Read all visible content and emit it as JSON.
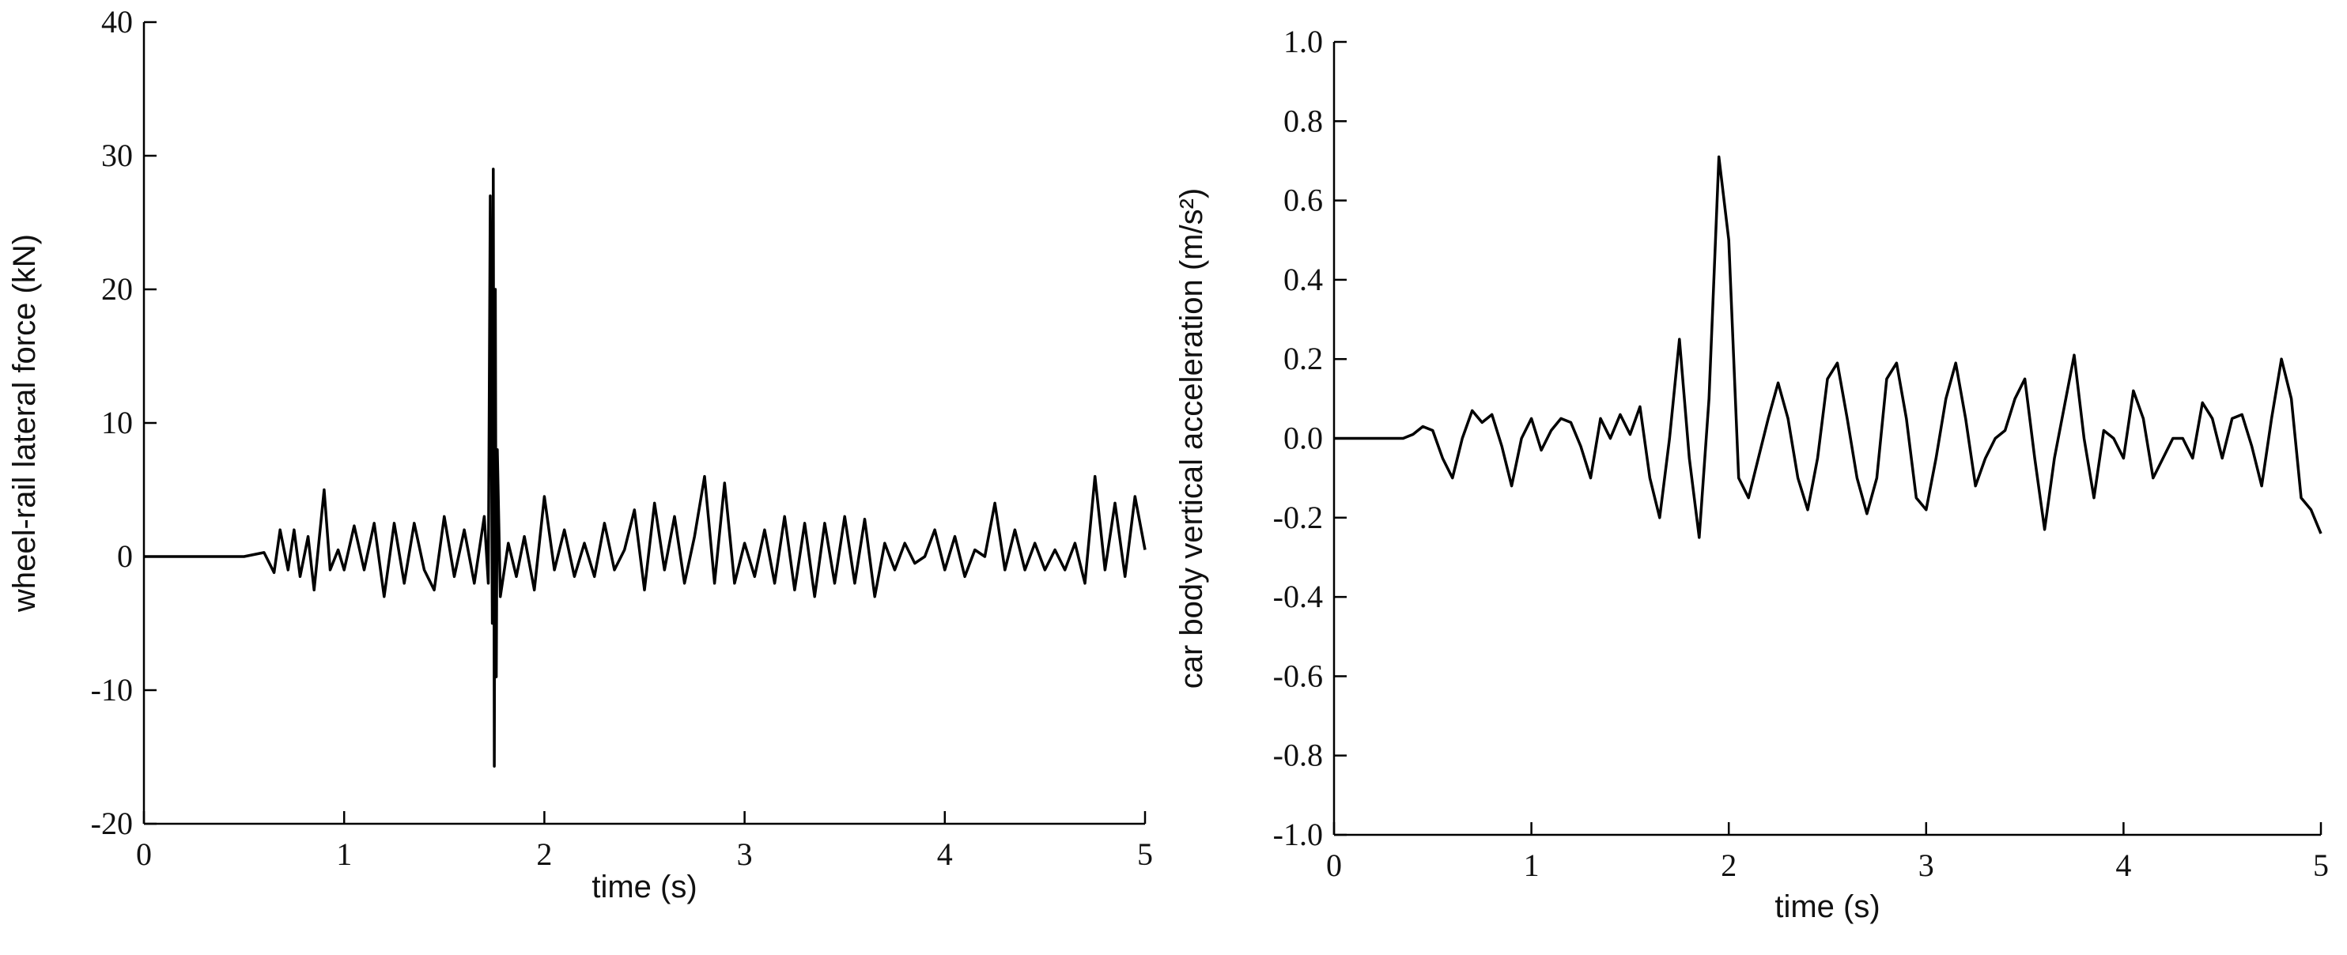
{
  "chart_data": [
    {
      "type": "line",
      "ylabel": "wheel-rail lateral force  (kN)",
      "xlabel": "time   (s)",
      "color": "#000000",
      "xlim": [
        0,
        5
      ],
      "xticks": [
        0,
        1,
        2,
        3,
        4,
        5
      ],
      "ylim": [
        -20,
        40
      ],
      "yticks": [
        -20,
        -10,
        0,
        10,
        20,
        30,
        40
      ],
      "x": [
        0,
        0.4,
        0.5,
        0.6,
        0.65,
        0.68,
        0.72,
        0.75,
        0.78,
        0.82,
        0.85,
        0.9,
        0.93,
        0.97,
        1.0,
        1.05,
        1.1,
        1.15,
        1.2,
        1.25,
        1.3,
        1.35,
        1.4,
        1.45,
        1.5,
        1.55,
        1.6,
        1.65,
        1.7,
        1.72,
        1.73,
        1.74,
        1.745,
        1.75,
        1.755,
        1.76,
        1.765,
        1.78,
        1.82,
        1.86,
        1.9,
        1.95,
        2.0,
        2.05,
        2.1,
        2.15,
        2.2,
        2.25,
        2.3,
        2.35,
        2.4,
        2.45,
        2.5,
        2.55,
        2.6,
        2.65,
        2.7,
        2.75,
        2.8,
        2.85,
        2.9,
        2.95,
        3.0,
        3.05,
        3.1,
        3.15,
        3.2,
        3.25,
        3.3,
        3.35,
        3.4,
        3.45,
        3.5,
        3.55,
        3.6,
        3.65,
        3.7,
        3.75,
        3.8,
        3.85,
        3.9,
        3.95,
        4.0,
        4.05,
        4.1,
        4.15,
        4.2,
        4.25,
        4.3,
        4.35,
        4.4,
        4.45,
        4.5,
        4.55,
        4.6,
        4.65,
        4.7,
        4.75,
        4.8,
        4.85,
        4.9,
        4.95,
        5.0
      ],
      "values": [
        0,
        0,
        0,
        0.3,
        -1.2,
        2,
        -1,
        2,
        -1.5,
        1.5,
        -2.5,
        5,
        -1,
        0.5,
        -1,
        2.3,
        -1,
        2.5,
        -3,
        2.5,
        -2,
        2.5,
        -1,
        -2.5,
        3,
        -1.5,
        2,
        -2,
        3,
        -2,
        27,
        -5,
        29,
        -15.7,
        20,
        -9,
        8,
        -3,
        1,
        -1.5,
        1.5,
        -2.5,
        4.5,
        -1,
        2,
        -1.5,
        1,
        -1.5,
        2.5,
        -1,
        0.5,
        3.5,
        -2.5,
        4,
        -1,
        3,
        -2,
        1.5,
        6,
        -2,
        5.5,
        -2,
        1,
        -1.5,
        2,
        -2,
        3,
        -2.5,
        2.5,
        -3,
        2.5,
        -2,
        3,
        -2,
        2.8,
        -3,
        1,
        -1,
        1,
        -0.5,
        0,
        2,
        -1,
        1.5,
        -1.5,
        0.5,
        0,
        4,
        -1,
        2,
        -1,
        1,
        -1,
        0.5,
        -1,
        1,
        -2,
        6,
        -1,
        4,
        -1.5,
        4.5,
        0.5
      ]
    },
    {
      "type": "line",
      "ylabel": "car body vertical acceleration  (m/s²)",
      "xlabel": "time (s)",
      "color": "#000000",
      "xlim": [
        0,
        5
      ],
      "xticks": [
        0,
        1,
        2,
        3,
        4,
        5
      ],
      "ylim": [
        -1,
        1
      ],
      "yticks": [
        {
          "value": -1,
          "label": "-1.0"
        },
        -0.8,
        -0.6,
        -0.4,
        -0.2,
        {
          "value": 0,
          "label": "0.0"
        },
        0.2,
        0.4,
        0.6,
        0.8,
        {
          "value": 1,
          "label": "1.0"
        }
      ],
      "x": [
        0,
        0.35,
        0.4,
        0.45,
        0.5,
        0.55,
        0.6,
        0.65,
        0.7,
        0.75,
        0.8,
        0.85,
        0.9,
        0.95,
        1.0,
        1.05,
        1.1,
        1.15,
        1.2,
        1.25,
        1.3,
        1.35,
        1.4,
        1.45,
        1.5,
        1.55,
        1.6,
        1.65,
        1.7,
        1.75,
        1.8,
        1.85,
        1.9,
        1.95,
        2.0,
        2.05,
        2.1,
        2.15,
        2.2,
        2.25,
        2.3,
        2.35,
        2.4,
        2.45,
        2.5,
        2.55,
        2.6,
        2.65,
        2.7,
        2.75,
        2.8,
        2.85,
        2.9,
        2.95,
        3.0,
        3.05,
        3.1,
        3.15,
        3.2,
        3.25,
        3.3,
        3.35,
        3.4,
        3.45,
        3.5,
        3.55,
        3.6,
        3.65,
        3.7,
        3.75,
        3.8,
        3.85,
        3.9,
        3.95,
        4.0,
        4.05,
        4.1,
        4.15,
        4.2,
        4.25,
        4.3,
        4.35,
        4.4,
        4.45,
        4.5,
        4.55,
        4.6,
        4.65,
        4.7,
        4.75,
        4.8,
        4.85,
        4.9,
        4.95,
        5.0
      ],
      "values": [
        0,
        0,
        0.01,
        0.03,
        0.02,
        -0.05,
        -0.1,
        0,
        0.07,
        0.04,
        0.06,
        -0.02,
        -0.12,
        0,
        0.05,
        -0.03,
        0.02,
        0.05,
        0.04,
        -0.02,
        -0.1,
        0.05,
        0,
        0.06,
        0.01,
        0.08,
        -0.1,
        -0.2,
        0,
        0.25,
        -0.05,
        -0.25,
        0.1,
        0.71,
        0.5,
        -0.1,
        -0.15,
        -0.05,
        0.05,
        0.14,
        0.05,
        -0.1,
        -0.18,
        -0.05,
        0.15,
        0.19,
        0.05,
        -0.1,
        -0.19,
        -0.1,
        0.15,
        0.19,
        0.05,
        -0.15,
        -0.18,
        -0.05,
        0.1,
        0.19,
        0.05,
        -0.12,
        -0.05,
        0,
        0.02,
        0.1,
        0.15,
        -0.05,
        -0.23,
        -0.05,
        0.08,
        0.21,
        0,
        -0.15,
        0.02,
        0,
        -0.05,
        0.12,
        0.05,
        -0.1,
        -0.05,
        0,
        0,
        -0.05,
        0.09,
        0.05,
        -0.05,
        0.05,
        0.06,
        -0.02,
        -0.12,
        0.05,
        0.2,
        0.1,
        -0.15,
        -0.18,
        -0.24
      ]
    }
  ]
}
